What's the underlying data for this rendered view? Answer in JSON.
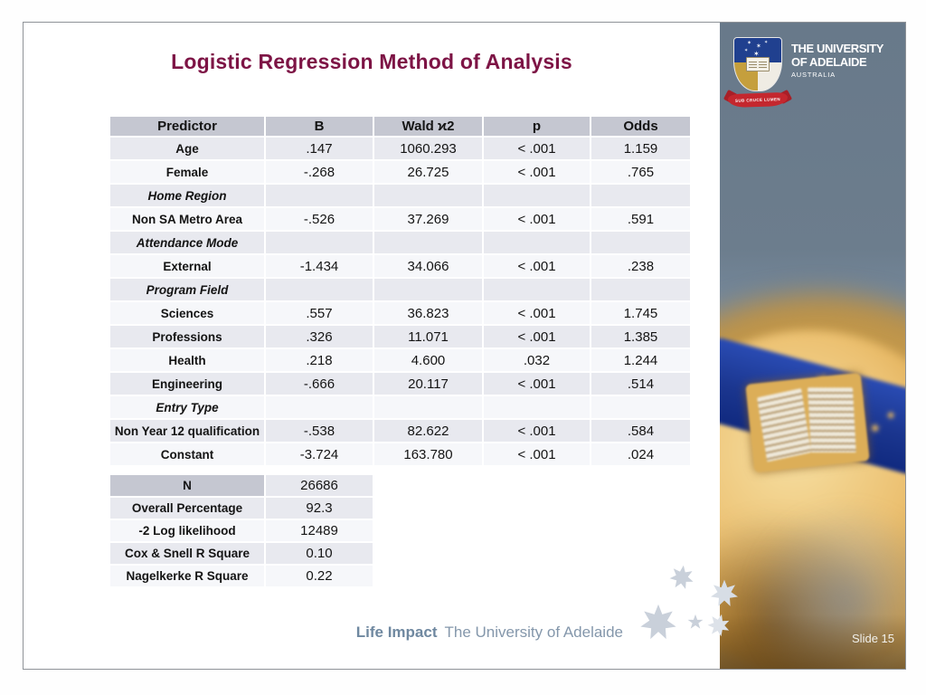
{
  "slide": {
    "title": "Logistic Regression Method of Analysis",
    "slide_number_label": "Slide 15",
    "footer": {
      "brand_bold": "Life Impact",
      "brand_rest": "The University of Adelaide"
    }
  },
  "logo": {
    "line1": "THE UNIVERSITY",
    "line2": "OF ADELAIDE",
    "line3": "AUSTRALIA",
    "motto": "SUB CRUCE LUMEN"
  },
  "regression_table": {
    "columns": [
      "Predictor",
      "B",
      "Wald ϰ2",
      "p",
      "Odds"
    ],
    "rows": [
      {
        "type": "data",
        "predictor": "Age",
        "b": ".147",
        "wald": "1060.293",
        "p": "< .001",
        "odds": "1.159"
      },
      {
        "type": "data",
        "predictor": "Female",
        "b": "-.268",
        "wald": "26.725",
        "p": "< .001",
        "odds": ".765"
      },
      {
        "type": "section",
        "predictor": "Home Region"
      },
      {
        "type": "data",
        "predictor": "Non SA Metro Area",
        "b": "-.526",
        "wald": "37.269",
        "p": "< .001",
        "odds": ".591"
      },
      {
        "type": "section",
        "predictor": "Attendance Mode"
      },
      {
        "type": "data",
        "predictor": "External",
        "b": "-1.434",
        "wald": "34.066",
        "p": "< .001",
        "odds": ".238"
      },
      {
        "type": "section",
        "predictor": "Program Field"
      },
      {
        "type": "data",
        "predictor": "Sciences",
        "b": ".557",
        "wald": "36.823",
        "p": "< .001",
        "odds": "1.745"
      },
      {
        "type": "data",
        "predictor": "Professions",
        "b": ".326",
        "wald": "11.071",
        "p": "< .001",
        "odds": "1.385"
      },
      {
        "type": "data",
        "predictor": "Health",
        "b": ".218",
        "wald": "4.600",
        "p": ".032",
        "odds": "1.244"
      },
      {
        "type": "data",
        "predictor": "Engineering",
        "b": "-.666",
        "wald": "20.117",
        "p": "< .001",
        "odds": ".514"
      },
      {
        "type": "section",
        "predictor": "Entry Type"
      },
      {
        "type": "data",
        "predictor": "Non Year 12 qualification",
        "b": "-.538",
        "wald": "82.622",
        "p": "< .001",
        "odds": ".584"
      },
      {
        "type": "data",
        "predictor": "Constant",
        "b": "-3.724",
        "wald": "163.780",
        "p": "< .001",
        "odds": ".024"
      }
    ]
  },
  "model_stats": {
    "rows": [
      {
        "label": "N",
        "value": "26686",
        "header": true
      },
      {
        "label": "Overall Percentage",
        "value": "92.3"
      },
      {
        "label": "-2 Log likelihood",
        "value": "12489"
      },
      {
        "label": "Cox & Snell R Square",
        "value": "0.10"
      },
      {
        "label": "Nagelkerke R Square",
        "value": "0.22"
      }
    ]
  },
  "icons": {
    "star_glyph": "✶",
    "federation_star": "seven-pointed-star",
    "small_star": "five-pointed-star"
  },
  "colors": {
    "title": "#7d1445",
    "table_header_bg": "#c5c7d1",
    "row_stripe_grey": "#e8e9ef",
    "row_stripe_light": "#f6f7fa",
    "panel_slate": "#6c7d8d",
    "footer_text": "#8497ab",
    "star_grey": "#c9d0da",
    "band_blue": "#1b368f",
    "gold": "#d9a347",
    "crest_red": "#c4272e"
  }
}
